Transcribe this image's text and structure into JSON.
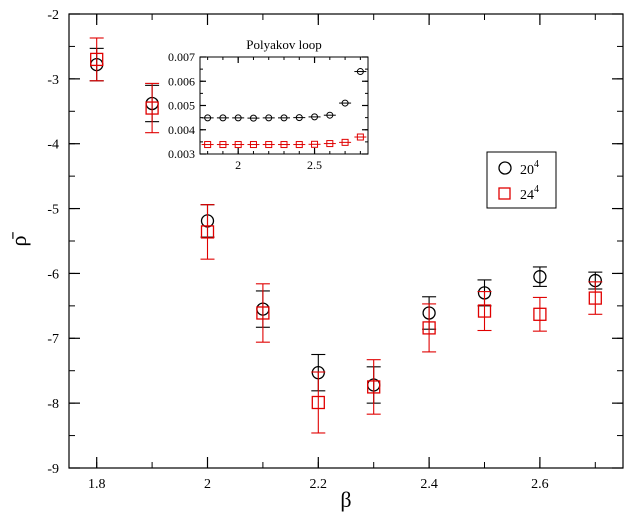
{
  "chart_data": [
    {
      "type": "scatter",
      "xlabel": "β",
      "ylabel": "ρ̄",
      "xlim": [
        1.75,
        2.75
      ],
      "ylim": [
        -9,
        -2
      ],
      "x_ticks": [
        1.8,
        2,
        2.2,
        2.4,
        2.6
      ],
      "x_tick_labels": [
        "1.8",
        "2",
        "2.2",
        "2.4",
        "2.6"
      ],
      "y_ticks": [
        -9,
        -8,
        -7,
        -6,
        -5,
        -4,
        -3,
        -2
      ],
      "y_tick_labels": [
        "-9",
        "-8",
        "-7",
        "-6",
        "-5",
        "-4",
        "-3",
        "-2"
      ],
      "minor_x_step": 0.1,
      "minor_y_step": 0.5,
      "grid": false,
      "legend": {
        "position": "right",
        "entries_base": [
          "20",
          "24"
        ],
        "entries_exp": [
          "4",
          "4"
        ]
      },
      "series": [
        {
          "name": "20^4",
          "marker": "circle",
          "color": "#000000",
          "x": [
            1.8,
            1.9,
            2.0,
            2.1,
            2.2,
            2.3,
            2.4,
            2.5,
            2.6,
            2.7
          ],
          "y": [
            -2.78,
            -3.38,
            -5.19,
            -6.55,
            -7.53,
            -7.72,
            -6.61,
            -6.3,
            -6.05,
            -6.11
          ],
          "err": [
            0.25,
            0.28,
            0.25,
            0.28,
            0.28,
            0.28,
            0.25,
            0.2,
            0.15,
            0.13
          ]
        },
        {
          "name": "24^4",
          "marker": "square",
          "color": "#e00000",
          "x": [
            1.8,
            1.9,
            2.0,
            2.1,
            2.2,
            2.3,
            2.4,
            2.5,
            2.6,
            2.7
          ],
          "y": [
            -2.7,
            -3.45,
            -5.36,
            -6.61,
            -7.99,
            -7.75,
            -6.84,
            -6.58,
            -6.63,
            -6.38
          ],
          "err": [
            0.33,
            0.38,
            0.42,
            0.45,
            0.47,
            0.42,
            0.37,
            0.3,
            0.26,
            0.25
          ]
        }
      ]
    },
    {
      "type": "scatter",
      "title": "Polyakov loop",
      "xlim": [
        1.75,
        2.85
      ],
      "ylim": [
        0.003,
        0.007
      ],
      "x_ticks": [
        2,
        2.5
      ],
      "x_tick_labels": [
        "2",
        "2.5"
      ],
      "y_ticks": [
        0.003,
        0.004,
        0.005,
        0.006,
        0.007
      ],
      "y_tick_labels": [
        "0.003",
        "0.004",
        "0.005",
        "0.006",
        "0.007"
      ],
      "minor_x_step": 0.1,
      "minor_y_step": 0.0005,
      "series": [
        {
          "name": "20^4",
          "marker": "circle",
          "color": "#000000",
          "x": [
            1.8,
            1.9,
            2.0,
            2.1,
            2.2,
            2.3,
            2.4,
            2.5,
            2.6,
            2.7,
            2.8
          ],
          "y": [
            0.00449,
            0.00449,
            0.00449,
            0.00448,
            0.00449,
            0.00449,
            0.0045,
            0.00453,
            0.0046,
            0.0051,
            0.0064
          ]
        },
        {
          "name": "24^4",
          "marker": "square",
          "color": "#e00000",
          "x": [
            1.8,
            1.9,
            2.0,
            2.1,
            2.2,
            2.3,
            2.4,
            2.5,
            2.6,
            2.7,
            2.8
          ],
          "y": [
            0.00339,
            0.00339,
            0.00339,
            0.00339,
            0.00339,
            0.00339,
            0.00339,
            0.0034,
            0.00343,
            0.00348,
            0.0037
          ]
        }
      ]
    }
  ]
}
